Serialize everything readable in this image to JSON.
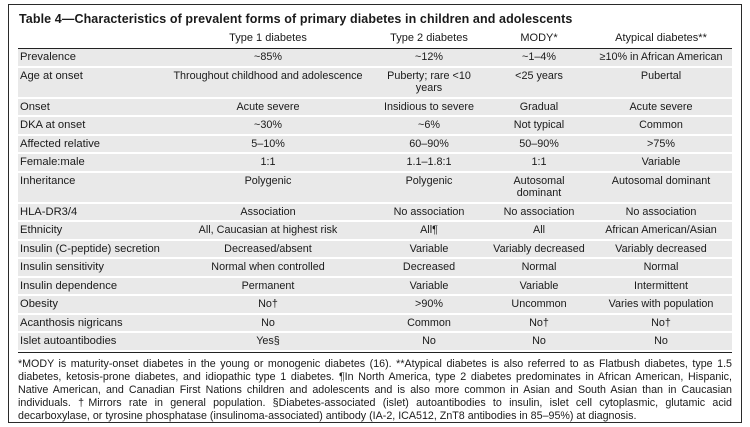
{
  "table": {
    "title": "Table 4—Characteristics of prevalent forms of primary diabetes in children and adolescents",
    "columns": [
      "",
      "Type 1 diabetes",
      "Type 2 diabetes",
      "MODY*",
      "Atypical diabetes**"
    ],
    "rows": [
      {
        "label": "Prevalence",
        "values": [
          "~85%",
          "~12%",
          "~1–4%",
          "≥10% in African American"
        ]
      },
      {
        "label": "Age at onset",
        "values": [
          "Throughout childhood and adolescence",
          "Puberty; rare <10 years",
          "<25 years",
          "Pubertal"
        ]
      },
      {
        "label": "Onset",
        "values": [
          "Acute severe",
          "Insidious to severe",
          "Gradual",
          "Acute severe"
        ]
      },
      {
        "label": "DKA at onset",
        "values": [
          "~30%",
          "~6%",
          "Not typical",
          "Common"
        ]
      },
      {
        "label": "Affected relative",
        "values": [
          "5–10%",
          "60–90%",
          "50–90%",
          ">75%"
        ]
      },
      {
        "label": "Female:male",
        "values": [
          "1:1",
          "1.1–1.8:1",
          "1:1",
          "Variable"
        ]
      },
      {
        "label": "Inheritance",
        "values": [
          "Polygenic",
          "Polygenic",
          "Autosomal dominant",
          "Autosomal dominant"
        ]
      },
      {
        "label": "HLA-DR3/4",
        "values": [
          "Association",
          "No association",
          "No association",
          "No association"
        ]
      },
      {
        "label": "Ethnicity",
        "values": [
          "All, Caucasian at highest risk",
          "All¶",
          "All",
          "African American/Asian"
        ]
      },
      {
        "label": "Insulin (C-peptide) secretion",
        "values": [
          "Decreased/absent",
          "Variable",
          "Variably decreased",
          "Variably decreased"
        ]
      },
      {
        "label": "Insulin sensitivity",
        "values": [
          "Normal when controlled",
          "Decreased",
          "Normal",
          "Normal"
        ]
      },
      {
        "label": "Insulin dependence",
        "values": [
          "Permanent",
          "Variable",
          "Variable",
          "Intermittent"
        ]
      },
      {
        "label": "Obesity",
        "values": [
          "No†",
          ">90%",
          "Uncommon",
          "Varies with population"
        ]
      },
      {
        "label": "Acanthosis nigricans",
        "values": [
          "No",
          "Common",
          "No†",
          "No†"
        ]
      },
      {
        "label": "Islet autoantibodies",
        "values": [
          "Yes§",
          "No",
          "No",
          "No"
        ]
      }
    ],
    "footnote": "*MODY is maturity-onset diabetes in the young or monogenic diabetes (16). **Atypical diabetes is also referred to as Flatbush diabetes, type 1.5 diabetes, ketosis-prone diabetes, and idiopathic type 1 diabetes. ¶In North America, type 2 diabetes predominates in African American, Hispanic, Native American, and Canadian First Nations children and adolescents and is also more common in Asian and South Asian than in Caucasian individuals. †Mirrors rate in general population. §Diabetes-associated (islet) autoantibodies to insulin, islet cell cytoplasmic, glutamic acid decarboxylase, or tyrosine phosphatase (insulinoma-associated) antibody (IA-2, ICA512, ZnT8 antibodies in 85–95%) at diagnosis.",
    "colors": {
      "row_band": "#e9e9e9",
      "rule": "#222222",
      "text": "#1a1a1a",
      "background": "#ffffff"
    }
  }
}
